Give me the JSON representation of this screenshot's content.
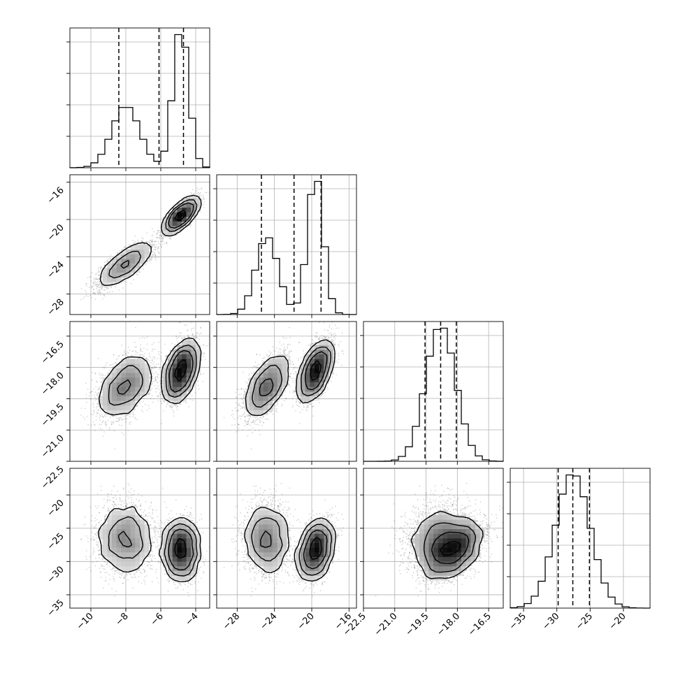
{
  "chart_data": {
    "type": "corner",
    "n_params": 4,
    "grid": true,
    "params": [
      {
        "range": [
          -11.2,
          -3.2
        ],
        "ticks": [
          -10,
          -8,
          -6,
          -4
        ],
        "tick_labels": [
          "−10",
          "−8",
          "−6",
          "−4"
        ],
        "quantiles": [
          -8.4,
          -6.1,
          -4.7
        ],
        "modes": [
          {
            "mean": -8.0,
            "sd": 0.8,
            "w": 0.44
          },
          {
            "mean": -4.85,
            "sd": 0.45,
            "w": 0.56
          }
        ]
      },
      {
        "range": [
          -30.2,
          -15.2
        ],
        "ticks": [
          -28,
          -24,
          -20,
          -16
        ],
        "tick_labels": [
          "−28",
          "−24",
          "−20",
          "−16"
        ],
        "quantiles": [
          -25.4,
          -21.9,
          -19.0
        ],
        "modes": [
          {
            "mean": -24.8,
            "sd": 1.2,
            "w": 0.44
          },
          {
            "mean": -19.6,
            "sd": 0.85,
            "w": 0.56
          }
        ]
      },
      {
        "range": [
          -22.5,
          -15.8
        ],
        "ticks": [
          -22.5,
          -21.0,
          -19.5,
          -18.0,
          -16.5
        ],
        "tick_labels": [
          "−22.5",
          "−21.0",
          "−19.5",
          "−18.0",
          "−16.5"
        ],
        "quantiles": [
          -19.55,
          -18.8,
          -18.05
        ],
        "modes": [
          {
            "mean": -18.8,
            "sd": 0.72,
            "w": 1.0
          }
        ]
      },
      {
        "range": [
          -37.0,
          -16.0
        ],
        "ticks": [
          -35,
          -30,
          -25,
          -20
        ],
        "tick_labels": [
          "−35",
          "−30",
          "−25",
          "−20"
        ],
        "quantiles": [
          -29.8,
          -27.6,
          -25.1
        ],
        "modes": [
          {
            "mean": -27.6,
            "sd": 2.6,
            "w": 1.0
          }
        ]
      }
    ],
    "clusters": [
      {
        "w": 0.44,
        "mean": [
          -8.0,
          -24.8,
          -18.9,
          -26.5
        ],
        "sd": [
          0.8,
          1.2,
          0.75,
          2.6
        ]
      },
      {
        "w": 0.56,
        "mean": [
          -4.85,
          -19.6,
          -18.2,
          -28.3
        ],
        "sd": [
          0.45,
          0.85,
          0.7,
          2.1
        ]
      }
    ]
  }
}
